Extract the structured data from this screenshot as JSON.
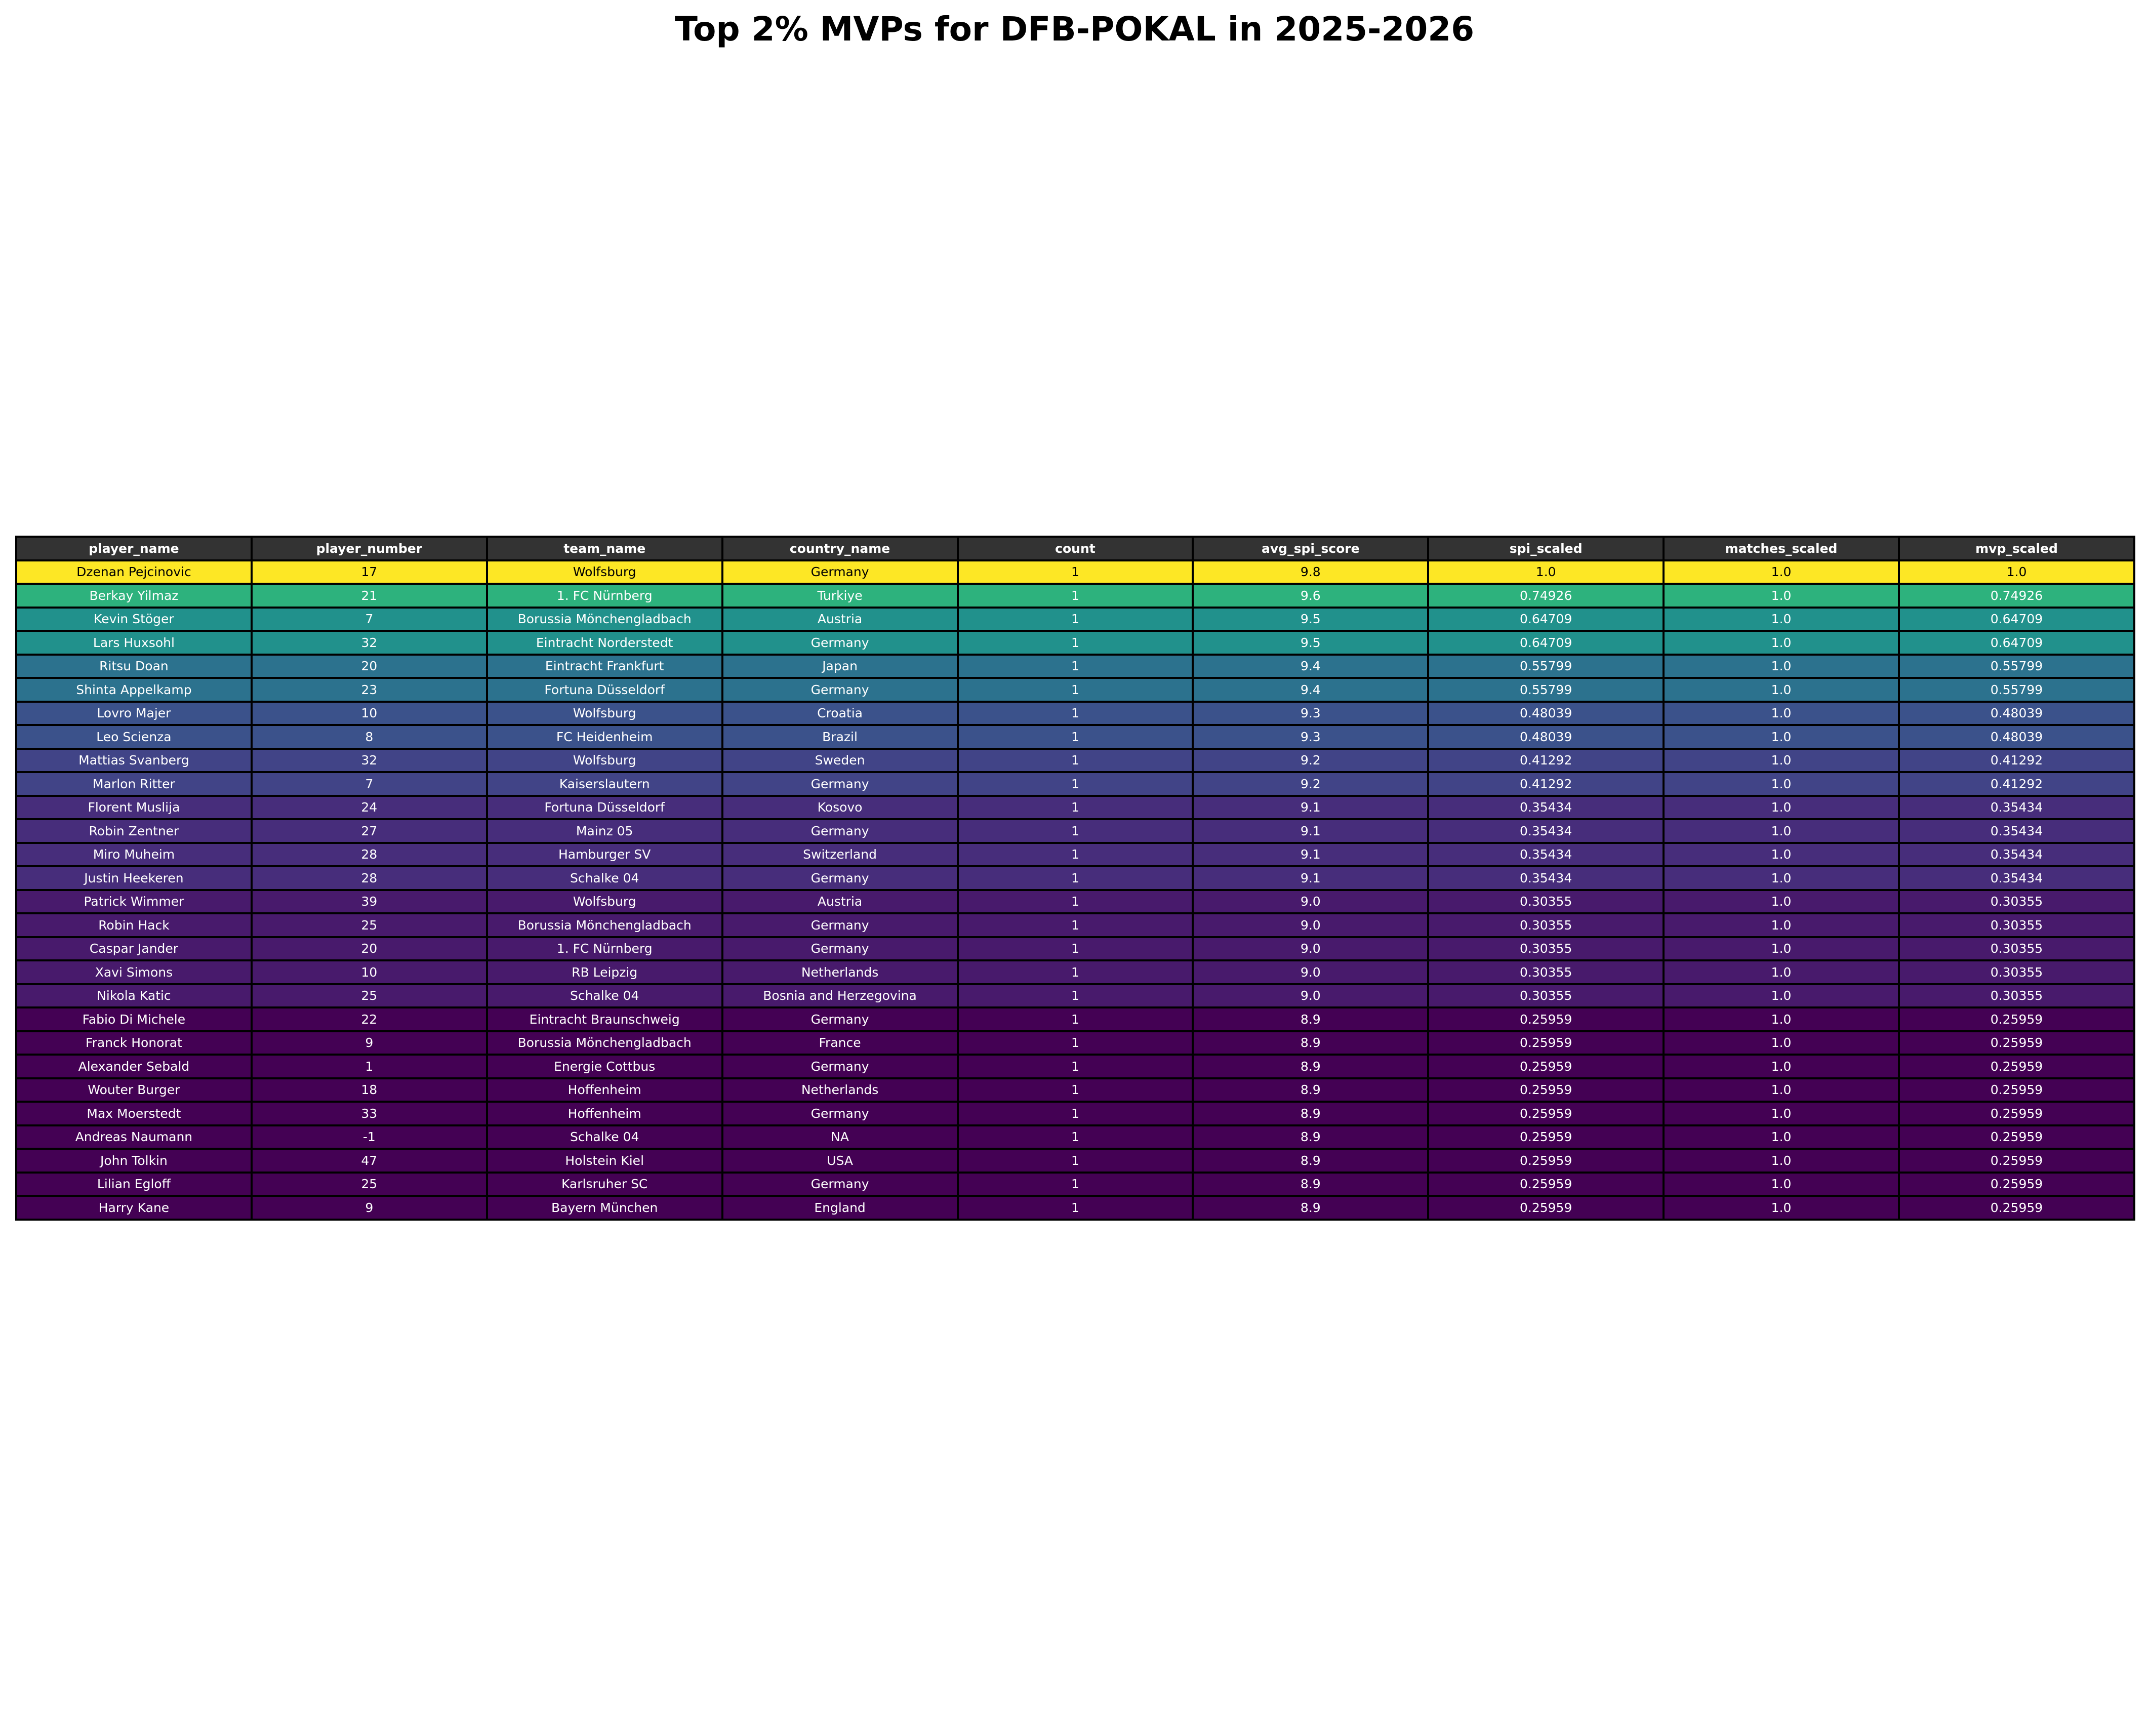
{
  "chart_data": {
    "type": "table",
    "title": "Top 2% MVPs for DFB-POKAL in 2025-2026",
    "columns": [
      "player_name",
      "player_number",
      "team_name",
      "country_name",
      "count",
      "avg_spi_score",
      "spi_scaled",
      "matches_scaled",
      "mvp_scaled"
    ],
    "row_colors": [
      "#fde725",
      "#2db27d",
      "#21918c",
      "#21918c",
      "#2c728e",
      "#2c728e",
      "#3b528b",
      "#3b528b",
      "#414487",
      "#414487",
      "#472d7b",
      "#472d7b",
      "#472d7b",
      "#472d7b",
      "#481a6c",
      "#481a6c",
      "#481a6c",
      "#481a6c",
      "#481a6c",
      "#440154",
      "#440154",
      "#440154",
      "#440154",
      "#440154",
      "#440154",
      "#440154",
      "#440154",
      "#440154"
    ],
    "header_color": "#333333",
    "rows": [
      [
        "Dzenan Pejcinovic",
        "17",
        "Wolfsburg",
        "Germany",
        "1",
        "9.8",
        "1.0",
        "1.0",
        "1.0"
      ],
      [
        "Berkay Yilmaz",
        "21",
        "1. FC Nürnberg",
        "Turkiye",
        "1",
        "9.6",
        "0.74926",
        "1.0",
        "0.74926"
      ],
      [
        "Kevin Stöger",
        "7",
        "Borussia Mönchengladbach",
        "Austria",
        "1",
        "9.5",
        "0.64709",
        "1.0",
        "0.64709"
      ],
      [
        "Lars Huxsohl",
        "32",
        "Eintracht Norderstedt",
        "Germany",
        "1",
        "9.5",
        "0.64709",
        "1.0",
        "0.64709"
      ],
      [
        "Ritsu Doan",
        "20",
        "Eintracht Frankfurt",
        "Japan",
        "1",
        "9.4",
        "0.55799",
        "1.0",
        "0.55799"
      ],
      [
        "Shinta Appelkamp",
        "23",
        "Fortuna Düsseldorf",
        "Germany",
        "1",
        "9.4",
        "0.55799",
        "1.0",
        "0.55799"
      ],
      [
        "Lovro Majer",
        "10",
        "Wolfsburg",
        "Croatia",
        "1",
        "9.3",
        "0.48039",
        "1.0",
        "0.48039"
      ],
      [
        "Leo Scienza",
        "8",
        "FC Heidenheim",
        "Brazil",
        "1",
        "9.3",
        "0.48039",
        "1.0",
        "0.48039"
      ],
      [
        "Mattias Svanberg",
        "32",
        "Wolfsburg",
        "Sweden",
        "1",
        "9.2",
        "0.41292",
        "1.0",
        "0.41292"
      ],
      [
        "Marlon Ritter",
        "7",
        "Kaiserslautern",
        "Germany",
        "1",
        "9.2",
        "0.41292",
        "1.0",
        "0.41292"
      ],
      [
        "Florent Muslija",
        "24",
        "Fortuna Düsseldorf",
        "Kosovo",
        "1",
        "9.1",
        "0.35434",
        "1.0",
        "0.35434"
      ],
      [
        "Robin Zentner",
        "27",
        "Mainz 05",
        "Germany",
        "1",
        "9.1",
        "0.35434",
        "1.0",
        "0.35434"
      ],
      [
        "Miro Muheim",
        "28",
        "Hamburger SV",
        "Switzerland",
        "1",
        "9.1",
        "0.35434",
        "1.0",
        "0.35434"
      ],
      [
        "Justin Heekeren",
        "28",
        "Schalke 04",
        "Germany",
        "1",
        "9.1",
        "0.35434",
        "1.0",
        "0.35434"
      ],
      [
        "Patrick Wimmer",
        "39",
        "Wolfsburg",
        "Austria",
        "1",
        "9.0",
        "0.30355",
        "1.0",
        "0.30355"
      ],
      [
        "Robin Hack",
        "25",
        "Borussia Mönchengladbach",
        "Germany",
        "1",
        "9.0",
        "0.30355",
        "1.0",
        "0.30355"
      ],
      [
        "Caspar Jander",
        "20",
        "1. FC Nürnberg",
        "Germany",
        "1",
        "9.0",
        "0.30355",
        "1.0",
        "0.30355"
      ],
      [
        "Xavi Simons",
        "10",
        "RB Leipzig",
        "Netherlands",
        "1",
        "9.0",
        "0.30355",
        "1.0",
        "0.30355"
      ],
      [
        "Nikola Katic",
        "25",
        "Schalke 04",
        "Bosnia and Herzegovina",
        "1",
        "9.0",
        "0.30355",
        "1.0",
        "0.30355"
      ],
      [
        "Fabio Di Michele",
        "22",
        "Eintracht Braunschweig",
        "Germany",
        "1",
        "8.9",
        "0.25959",
        "1.0",
        "0.25959"
      ],
      [
        "Franck Honorat",
        "9",
        "Borussia Mönchengladbach",
        "France",
        "1",
        "8.9",
        "0.25959",
        "1.0",
        "0.25959"
      ],
      [
        "Alexander Sebald",
        "1",
        "Energie Cottbus",
        "Germany",
        "1",
        "8.9",
        "0.25959",
        "1.0",
        "0.25959"
      ],
      [
        "Wouter Burger",
        "18",
        "Hoffenheim",
        "Netherlands",
        "1",
        "8.9",
        "0.25959",
        "1.0",
        "0.25959"
      ],
      [
        "Max Moerstedt",
        "33",
        "Hoffenheim",
        "Germany",
        "1",
        "8.9",
        "0.25959",
        "1.0",
        "0.25959"
      ],
      [
        "Andreas Naumann",
        "-1",
        "Schalke 04",
        "NA",
        "1",
        "8.9",
        "0.25959",
        "1.0",
        "0.25959"
      ],
      [
        "John Tolkin",
        "47",
        "Holstein Kiel",
        "USA",
        "1",
        "8.9",
        "0.25959",
        "1.0",
        "0.25959"
      ],
      [
        "Lilian Egloff",
        "25",
        "Karlsruher SC",
        "Germany",
        "1",
        "8.9",
        "0.25959",
        "1.0",
        "0.25959"
      ],
      [
        "Harry Kane",
        "9",
        "Bayern München",
        "England",
        "1",
        "8.9",
        "0.25959",
        "1.0",
        "0.25959"
      ]
    ]
  }
}
